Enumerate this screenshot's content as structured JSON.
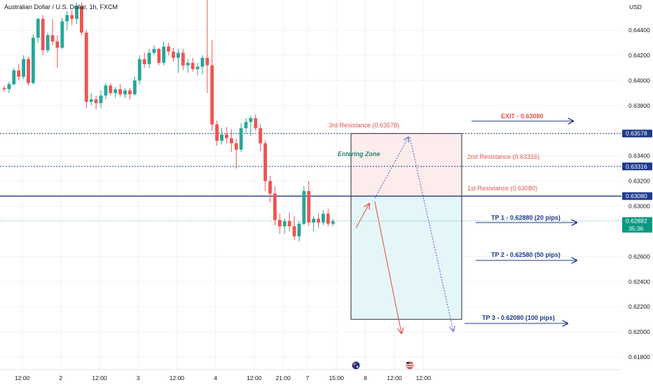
{
  "header": {
    "title": "Australian Dollar / U.S. Dollar, 1h, FXCM"
  },
  "price_axis": {
    "unit": "USD",
    "ticks": [
      "0.64400",
      "0.64200",
      "0.64000",
      "0.63800",
      "0.63400",
      "0.63200",
      "0.63000",
      "0.62600",
      "0.62400",
      "0.62200",
      "0.62000",
      "0.61800"
    ]
  },
  "time_axis": {
    "ticks": [
      {
        "label": "12:00",
        "i": 4
      },
      {
        "label": "2",
        "i": 12
      },
      {
        "label": "12:00",
        "i": 20
      },
      {
        "label": "3",
        "i": 28
      },
      {
        "label": "12:00",
        "i": 36
      },
      {
        "label": "4",
        "i": 44
      },
      {
        "label": "12:00",
        "i": 52
      },
      {
        "label": "21:00",
        "i": 58
      },
      {
        "label": "7",
        "i": 63
      },
      {
        "label": "15:00",
        "i": 69
      },
      {
        "label": "8",
        "i": 75
      },
      {
        "label": "12:00",
        "i": 81
      },
      {
        "label": "12:00",
        "i": 87
      }
    ]
  },
  "colors": {
    "up": "#26a69a",
    "down": "#ef5350",
    "resistance_line": "#1e3a8a",
    "teal_text": "#1f8a70",
    "red_text": "#e0574e",
    "blue_text": "#1e3a8a",
    "box_fill_top": "#fdecec",
    "box_fill_bottom": "#e5f6f9"
  },
  "price_tags": [
    {
      "price": 0.63578,
      "label": "0.63578",
      "color": "#1e3a8a"
    },
    {
      "price": 0.63316,
      "label": "0.63316",
      "color": "#1e3a8a"
    },
    {
      "price": 0.6308,
      "label": "0.63080",
      "color": "#1e3a8a"
    },
    {
      "price": 0.62882,
      "label": "0.62882",
      "sub": "35:36",
      "color": "#089981"
    }
  ],
  "annotations": {
    "exit": "EXIT - 0.63080",
    "resistance3": "3rd Resistance (0.63578)",
    "resistance2": "2nd Resistance (0.63316)",
    "resistance1": "1st Resistance (0.63080)",
    "entering_zone": "Entering Zone",
    "tp1": "TP 1 - 0.62880 (20 pips)",
    "tp2": "TP 2 - 0.62580 (50 pips)",
    "tp3": "TP 3 - 0.62080 (100 pips)"
  },
  "levels": {
    "r3": 0.63578,
    "r2": 0.63316,
    "r1": 0.6308,
    "current": 0.62882
  },
  "zone": {
    "top": 0.63578,
    "mid": 0.6308,
    "bottom": 0.621
  },
  "chart_data": {
    "type": "candlestick",
    "symbol": "AUDUSD",
    "ylim": [
      0.617,
      0.6464
    ],
    "candles": [
      {
        "o": 0.6394,
        "h": 0.6396,
        "l": 0.6391,
        "c": 0.6393
      },
      {
        "o": 0.6393,
        "h": 0.6399,
        "l": 0.639,
        "c": 0.6397
      },
      {
        "o": 0.6397,
        "h": 0.641,
        "l": 0.6396,
        "c": 0.6408
      },
      {
        "o": 0.6408,
        "h": 0.6413,
        "l": 0.64,
        "c": 0.6403
      },
      {
        "o": 0.6403,
        "h": 0.642,
        "l": 0.6401,
        "c": 0.6417
      },
      {
        "o": 0.6417,
        "h": 0.6419,
        "l": 0.6396,
        "c": 0.6398
      },
      {
        "o": 0.6398,
        "h": 0.6437,
        "l": 0.6397,
        "c": 0.6434
      },
      {
        "o": 0.6434,
        "h": 0.645,
        "l": 0.643,
        "c": 0.6449
      },
      {
        "o": 0.6449,
        "h": 0.6452,
        "l": 0.642,
        "c": 0.6424
      },
      {
        "o": 0.6424,
        "h": 0.6438,
        "l": 0.6422,
        "c": 0.6436
      },
      {
        "o": 0.6436,
        "h": 0.6449,
        "l": 0.6428,
        "c": 0.6431
      },
      {
        "o": 0.6431,
        "h": 0.6436,
        "l": 0.641,
        "c": 0.6426
      },
      {
        "o": 0.6426,
        "h": 0.645,
        "l": 0.6425,
        "c": 0.6447
      },
      {
        "o": 0.6447,
        "h": 0.6455,
        "l": 0.644,
        "c": 0.6452
      },
      {
        "o": 0.6452,
        "h": 0.6456,
        "l": 0.6444,
        "c": 0.6449
      },
      {
        "o": 0.6449,
        "h": 0.6462,
        "l": 0.6445,
        "c": 0.6459
      },
      {
        "o": 0.6459,
        "h": 0.6462,
        "l": 0.6436,
        "c": 0.6438
      },
      {
        "o": 0.6438,
        "h": 0.644,
        "l": 0.6378,
        "c": 0.6383
      },
      {
        "o": 0.6383,
        "h": 0.639,
        "l": 0.638,
        "c": 0.6385
      },
      {
        "o": 0.6385,
        "h": 0.6388,
        "l": 0.6377,
        "c": 0.6382
      },
      {
        "o": 0.6382,
        "h": 0.6392,
        "l": 0.6378,
        "c": 0.6388
      },
      {
        "o": 0.6388,
        "h": 0.6398,
        "l": 0.6385,
        "c": 0.6396
      },
      {
        "o": 0.6396,
        "h": 0.6398,
        "l": 0.6388,
        "c": 0.639
      },
      {
        "o": 0.639,
        "h": 0.6395,
        "l": 0.6386,
        "c": 0.6393
      },
      {
        "o": 0.6393,
        "h": 0.6397,
        "l": 0.6387,
        "c": 0.6389
      },
      {
        "o": 0.6389,
        "h": 0.6394,
        "l": 0.6386,
        "c": 0.6392
      },
      {
        "o": 0.6392,
        "h": 0.6394,
        "l": 0.6385,
        "c": 0.6389
      },
      {
        "o": 0.6389,
        "h": 0.6403,
        "l": 0.6388,
        "c": 0.64
      },
      {
        "o": 0.64,
        "h": 0.642,
        "l": 0.6397,
        "c": 0.6417
      },
      {
        "o": 0.6417,
        "h": 0.6422,
        "l": 0.641,
        "c": 0.6413
      },
      {
        "o": 0.6413,
        "h": 0.6425,
        "l": 0.641,
        "c": 0.6422
      },
      {
        "o": 0.6422,
        "h": 0.6428,
        "l": 0.642,
        "c": 0.6425
      },
      {
        "o": 0.6425,
        "h": 0.6426,
        "l": 0.6412,
        "c": 0.6414
      },
      {
        "o": 0.6414,
        "h": 0.6431,
        "l": 0.6412,
        "c": 0.6427
      },
      {
        "o": 0.6427,
        "h": 0.643,
        "l": 0.642,
        "c": 0.6423
      },
      {
        "o": 0.6423,
        "h": 0.6426,
        "l": 0.6415,
        "c": 0.6418
      },
      {
        "o": 0.6418,
        "h": 0.6425,
        "l": 0.6406,
        "c": 0.6422
      },
      {
        "o": 0.6422,
        "h": 0.6425,
        "l": 0.6408,
        "c": 0.6412
      },
      {
        "o": 0.6412,
        "h": 0.6417,
        "l": 0.6406,
        "c": 0.6414
      },
      {
        "o": 0.6414,
        "h": 0.6418,
        "l": 0.6407,
        "c": 0.6409
      },
      {
        "o": 0.6409,
        "h": 0.6414,
        "l": 0.6404,
        "c": 0.6411
      },
      {
        "o": 0.6411,
        "h": 0.642,
        "l": 0.6405,
        "c": 0.6418
      },
      {
        "o": 0.6418,
        "h": 0.647,
        "l": 0.639,
        "c": 0.6412
      },
      {
        "o": 0.6412,
        "h": 0.6432,
        "l": 0.636,
        "c": 0.6365
      },
      {
        "o": 0.6365,
        "h": 0.6368,
        "l": 0.6348,
        "c": 0.6352
      },
      {
        "o": 0.6352,
        "h": 0.6362,
        "l": 0.6349,
        "c": 0.6357
      },
      {
        "o": 0.6357,
        "h": 0.6363,
        "l": 0.635,
        "c": 0.6354
      },
      {
        "o": 0.6354,
        "h": 0.6361,
        "l": 0.6343,
        "c": 0.635
      },
      {
        "o": 0.635,
        "h": 0.6354,
        "l": 0.633,
        "c": 0.6345
      },
      {
        "o": 0.6345,
        "h": 0.6366,
        "l": 0.6343,
        "c": 0.6362
      },
      {
        "o": 0.6362,
        "h": 0.637,
        "l": 0.6358,
        "c": 0.6367
      },
      {
        "o": 0.6367,
        "h": 0.6372,
        "l": 0.6356,
        "c": 0.637
      },
      {
        "o": 0.637,
        "h": 0.6373,
        "l": 0.636,
        "c": 0.6362
      },
      {
        "o": 0.6362,
        "h": 0.6365,
        "l": 0.6344,
        "c": 0.635
      },
      {
        "o": 0.635,
        "h": 0.6352,
        "l": 0.6312,
        "c": 0.632
      },
      {
        "o": 0.632,
        "h": 0.6324,
        "l": 0.6303,
        "c": 0.631
      },
      {
        "o": 0.631,
        "h": 0.6316,
        "l": 0.6285,
        "c": 0.6289
      },
      {
        "o": 0.6289,
        "h": 0.6294,
        "l": 0.6278,
        "c": 0.6284
      },
      {
        "o": 0.6284,
        "h": 0.629,
        "l": 0.6278,
        "c": 0.6288
      },
      {
        "o": 0.6288,
        "h": 0.6295,
        "l": 0.628,
        "c": 0.6284
      },
      {
        "o": 0.6284,
        "h": 0.6292,
        "l": 0.6273,
        "c": 0.6276
      },
      {
        "o": 0.6276,
        "h": 0.6288,
        "l": 0.6272,
        "c": 0.6286
      },
      {
        "o": 0.6286,
        "h": 0.6316,
        "l": 0.6285,
        "c": 0.6312
      },
      {
        "o": 0.6312,
        "h": 0.632,
        "l": 0.6284,
        "c": 0.6287
      },
      {
        "o": 0.6287,
        "h": 0.6292,
        "l": 0.628,
        "c": 0.629
      },
      {
        "o": 0.629,
        "h": 0.6294,
        "l": 0.6283,
        "c": 0.6287
      },
      {
        "o": 0.6287,
        "h": 0.6297,
        "l": 0.6285,
        "c": 0.6294
      },
      {
        "o": 0.6294,
        "h": 0.6298,
        "l": 0.6284,
        "c": 0.6286
      },
      {
        "o": 0.6286,
        "h": 0.629,
        "l": 0.6284,
        "c": 0.6288
      }
    ]
  }
}
